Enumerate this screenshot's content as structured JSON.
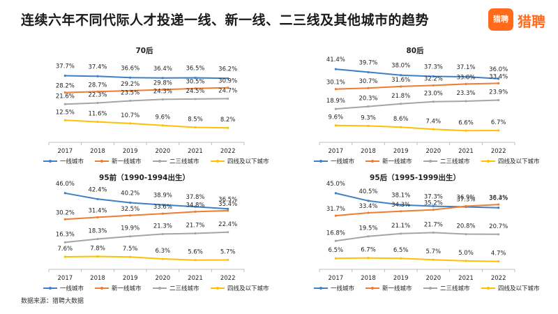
{
  "title": "连续六年不同代际人才投递一线、新一线、二三线及其他城市的趋势",
  "logo": {
    "badge": "猎聘",
    "name": "猎聘"
  },
  "source": "数据来源：猎聘大数据",
  "colors": {
    "一线城市": "#3f7fc6",
    "新一线城市": "#ed7d31",
    "二三线城市": "#a5a5a5",
    "四线及以下城市": "#ffc000"
  },
  "chart_data": [
    {
      "type": "line",
      "title": "70后",
      "categories": [
        "2017",
        "2018",
        "2019",
        "2020",
        "2021",
        "2022"
      ],
      "ylim": [
        0,
        45
      ],
      "grid": false,
      "legend": "bottom",
      "series": [
        {
          "name": "一线城市",
          "values": [
            37.7,
            37.4,
            36.6,
            36.4,
            36.5,
            36.2
          ],
          "labels": [
            "37.7%",
            "37.4%",
            "36.6%",
            "36.4%",
            "36.5%",
            "36.2%"
          ]
        },
        {
          "name": "新一线城市",
          "values": [
            28.2,
            28.7,
            29.2,
            29.8,
            30.5,
            30.9
          ],
          "labels": [
            "28.2%",
            "28.7%",
            "29.2%",
            "29.8%",
            "30.5%",
            "30.9%"
          ]
        },
        {
          "name": "二三线城市",
          "values": [
            21.6,
            22.3,
            23.5,
            24.3,
            24.5,
            24.7
          ],
          "labels": [
            "21.6%",
            "22.3%",
            "23.5%",
            "24.3%",
            "24.5%",
            "24.7%"
          ]
        },
        {
          "name": "四线及以下城市",
          "values": [
            12.5,
            11.6,
            10.7,
            9.6,
            8.5,
            8.2
          ],
          "labels": [
            "12.5%",
            "11.6%",
            "10.7%",
            "9.6%",
            "8.5%",
            "8.2%"
          ]
        }
      ]
    },
    {
      "type": "line",
      "title": "80后",
      "categories": [
        "2017",
        "2018",
        "2019",
        "2020",
        "2021",
        "2022"
      ],
      "ylim": [
        0,
        45
      ],
      "grid": false,
      "legend": "bottom",
      "series": [
        {
          "name": "一线城市",
          "values": [
            41.4,
            39.7,
            38.0,
            37.3,
            37.1,
            36.0
          ],
          "labels": [
            "41.4%",
            "39.7%",
            "38.0%",
            "37.3%",
            "37.1%",
            "36.0%"
          ]
        },
        {
          "name": "新一线城市",
          "values": [
            30.1,
            30.7,
            31.6,
            32.2,
            33.0,
            33.4
          ],
          "labels": [
            "30.1%",
            "30.7%",
            "31.6%",
            "32.2%",
            "33.0%",
            "33.4%"
          ]
        },
        {
          "name": "二三线城市",
          "values": [
            18.9,
            20.3,
            21.8,
            23.0,
            23.3,
            23.9
          ],
          "labels": [
            "18.9%",
            "20.3%",
            "21.8%",
            "23.0%",
            "23.3%",
            "23.9%"
          ]
        },
        {
          "name": "四线及以下城市",
          "values": [
            9.6,
            9.3,
            8.6,
            7.4,
            6.6,
            6.7
          ],
          "labels": [
            "9.6%",
            "9.3%",
            "8.6%",
            "7.4%",
            "6.6%",
            "6.7%"
          ]
        }
      ]
    },
    {
      "type": "line",
      "title": "95前（1990-1994出生）",
      "categories": [
        "2017",
        "2018",
        "2019",
        "2020",
        "2021",
        "2022"
      ],
      "ylim": [
        0,
        48
      ],
      "grid": false,
      "legend": "bottom",
      "series": [
        {
          "name": "一线城市",
          "values": [
            46.0,
            42.4,
            40.2,
            38.9,
            37.8,
            36.5
          ],
          "labels": [
            "46.0%",
            "42.4%",
            "40.2%",
            "38.9%",
            "37.8%",
            "36.5%"
          ]
        },
        {
          "name": "新一线城市",
          "values": [
            30.2,
            31.4,
            32.5,
            33.6,
            34.8,
            35.4
          ],
          "labels": [
            "30.2%",
            "31.4%",
            "32.5%",
            "33.6%",
            "34.8%",
            "35.4%"
          ]
        },
        {
          "name": "二三线城市",
          "values": [
            16.3,
            18.3,
            19.9,
            21.3,
            21.7,
            22.4
          ],
          "labels": [
            "16.3%",
            "18.3%",
            "19.9%",
            "21.3%",
            "21.7%",
            "22.4%"
          ]
        },
        {
          "name": "四线及以下城市",
          "values": [
            7.6,
            7.8,
            7.5,
            6.3,
            5.6,
            5.7
          ],
          "labels": [
            "7.6%",
            "7.8%",
            "7.5%",
            "6.3%",
            "5.6%",
            "5.7%"
          ]
        }
      ]
    },
    {
      "type": "line",
      "title": "95后（1995-1999出生）",
      "categories": [
        "2017",
        "2018",
        "2019",
        "2020",
        "2021",
        "2022"
      ],
      "ylim": [
        0,
        47
      ],
      "grid": false,
      "legend": "bottom",
      "series": [
        {
          "name": "一线城市",
          "values": [
            45.0,
            40.5,
            38.1,
            37.3,
            36.9,
            36.4
          ],
          "labels": [
            "45.0%",
            "40.5%",
            "38.1%",
            "37.3%",
            "36.9%",
            "36.4%"
          ]
        },
        {
          "name": "新一线城市",
          "values": [
            31.7,
            33.4,
            34.3,
            35.2,
            37.3,
            38.3
          ],
          "labels": [
            "31.7%",
            "33.4%",
            "34.3%",
            "35.2%",
            "37.3%",
            "38.3%"
          ]
        },
        {
          "name": "二三线城市",
          "values": [
            16.8,
            19.5,
            21.1,
            21.7,
            20.8,
            20.7
          ],
          "labels": [
            "16.8%",
            "19.5%",
            "21.1%",
            "21.7%",
            "20.8%",
            "20.7%"
          ]
        },
        {
          "name": "四线及以下城市",
          "values": [
            6.5,
            6.7,
            6.5,
            5.7,
            5.0,
            4.7
          ],
          "labels": [
            "6.5%",
            "6.7%",
            "6.5%",
            "5.7%",
            "5.0%",
            "4.7%"
          ]
        }
      ]
    }
  ]
}
